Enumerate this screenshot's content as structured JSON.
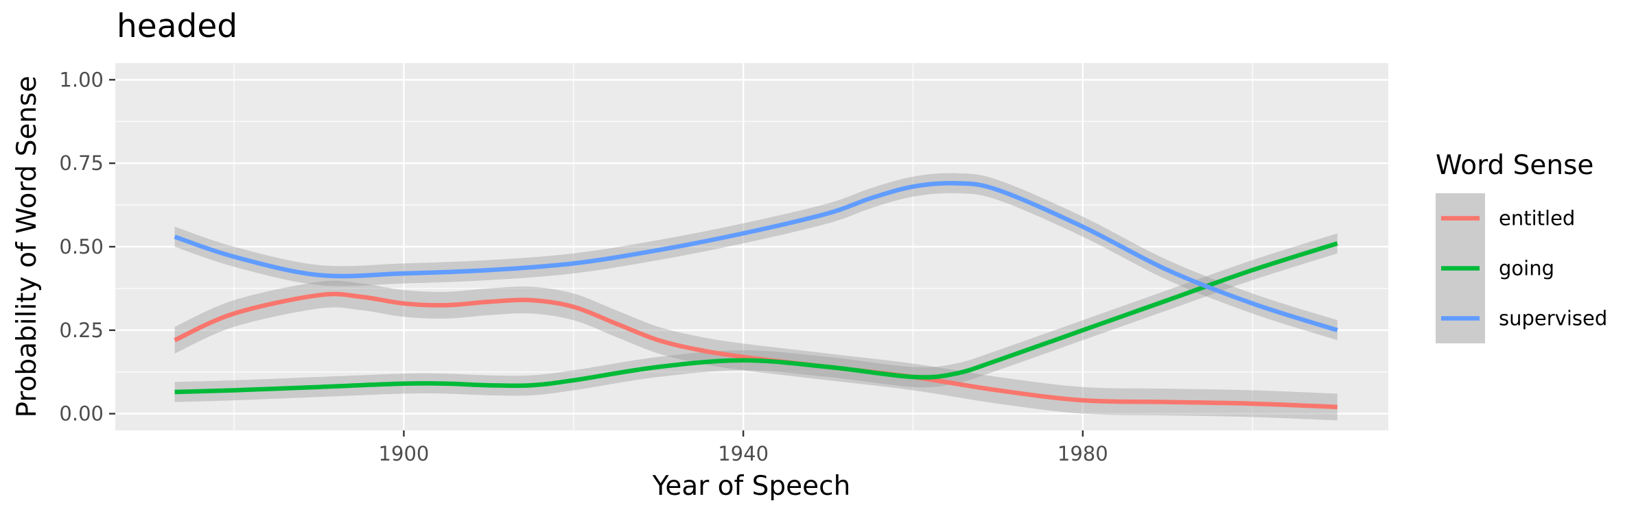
{
  "chart_data": {
    "type": "line",
    "title": "headed",
    "xlabel": "Year of Speech",
    "ylabel": "Probability of Word Sense",
    "xlim": [
      1866,
      2016
    ],
    "ylim": [
      -0.05,
      1.05
    ],
    "x_ticks": [
      1900,
      1940,
      1980
    ],
    "x_tick_labels": [
      "1900",
      "1940",
      "1980"
    ],
    "y_ticks": [
      0.0,
      0.25,
      0.5,
      0.75,
      1.0
    ],
    "y_tick_labels": [
      "0.00",
      "0.25",
      "0.50",
      "0.75",
      "1.00"
    ],
    "grid": true,
    "legend": {
      "title": "Word Sense",
      "position": "right"
    },
    "series": [
      {
        "name": "entitled",
        "color": "#F8766D",
        "x": [
          1873,
          1880,
          1890,
          1895,
          1900,
          1905,
          1910,
          1915,
          1920,
          1925,
          1930,
          1935,
          1940,
          1950,
          1960,
          1970,
          1980,
          1990,
          2000,
          2010
        ],
        "y": [
          0.22,
          0.3,
          0.355,
          0.35,
          0.33,
          0.325,
          0.335,
          0.34,
          0.32,
          0.27,
          0.22,
          0.19,
          0.17,
          0.14,
          0.11,
          0.07,
          0.04,
          0.035,
          0.03,
          0.02
        ],
        "band": 0.04
      },
      {
        "name": "going",
        "color": "#00BA38",
        "x": [
          1873,
          1880,
          1890,
          1900,
          1905,
          1910,
          1915,
          1920,
          1930,
          1940,
          1950,
          1960,
          1965,
          1970,
          1980,
          1990,
          2000,
          2010
        ],
        "y": [
          0.065,
          0.07,
          0.08,
          0.09,
          0.09,
          0.085,
          0.085,
          0.1,
          0.14,
          0.16,
          0.14,
          0.11,
          0.12,
          0.16,
          0.25,
          0.34,
          0.43,
          0.51
        ],
        "band": 0.03
      },
      {
        "name": "supervised",
        "color": "#619CFF",
        "x": [
          1873,
          1880,
          1890,
          1900,
          1910,
          1920,
          1930,
          1940,
          1950,
          1955,
          1960,
          1965,
          1970,
          1980,
          1990,
          2000,
          2010
        ],
        "y": [
          0.53,
          0.47,
          0.415,
          0.42,
          0.43,
          0.45,
          0.49,
          0.54,
          0.6,
          0.645,
          0.68,
          0.69,
          0.67,
          0.56,
          0.43,
          0.33,
          0.25
        ],
        "band": 0.03
      }
    ]
  }
}
